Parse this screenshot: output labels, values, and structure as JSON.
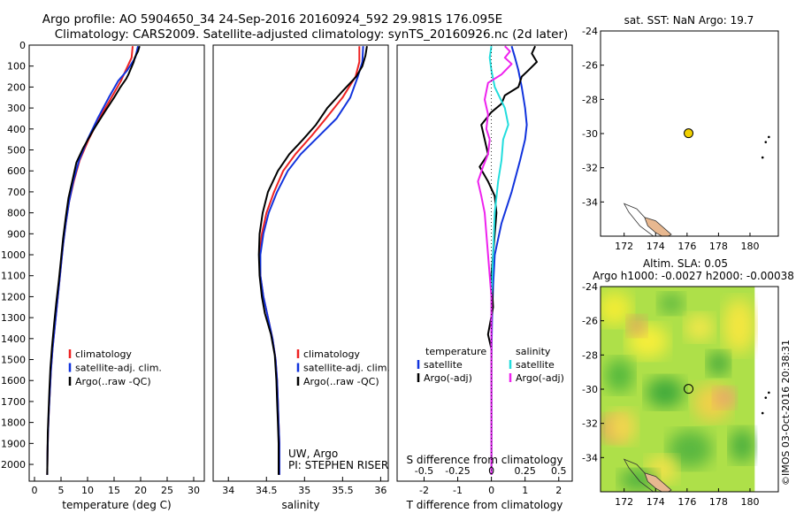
{
  "title_line1": "Argo profile: AO 5904650_34 24-Sep-2016 20160924_592 29.981S 176.095E",
  "title_line2": "Climatology: CARS2009. Satellite-adjusted climatology: synTS_20160926.nc (2d later)",
  "chart_data": [
    {
      "type": "line",
      "name": "temperature-profile",
      "xlabel": "temperature (deg C)",
      "ylabel": "",
      "xlim": [
        -1,
        32
      ],
      "ylim": [
        0,
        2080
      ],
      "y_inverted": true,
      "xticks": [
        0,
        5,
        10,
        15,
        20,
        25,
        30
      ],
      "yticks": [
        0,
        100,
        200,
        300,
        400,
        500,
        600,
        700,
        800,
        900,
        1000,
        1100,
        1200,
        1300,
        1400,
        1500,
        1600,
        1700,
        1800,
        1900,
        2000
      ],
      "legend": [
        "climatology",
        "satellite-adj. clim.",
        "Argo(..raw -QC)"
      ],
      "series": [
        {
          "name": "climatology",
          "color": "#ee2222",
          "points": [
            [
              18.5,
              5
            ],
            [
              18.3,
              60
            ],
            [
              17.2,
              120
            ],
            [
              16.3,
              170
            ],
            [
              14.5,
              250
            ],
            [
              12.2,
              350
            ],
            [
              10.2,
              450
            ],
            [
              8.5,
              550
            ],
            [
              7.4,
              650
            ],
            [
              6.5,
              750
            ],
            [
              5.9,
              850
            ],
            [
              5.4,
              950
            ],
            [
              5.0,
              1050
            ],
            [
              4.6,
              1150
            ],
            [
              4.2,
              1250
            ],
            [
              3.8,
              1350
            ],
            [
              3.4,
              1450
            ],
            [
              3.1,
              1550
            ],
            [
              2.9,
              1650
            ],
            [
              2.7,
              1750
            ],
            [
              2.55,
              1850
            ],
            [
              2.45,
              1950
            ],
            [
              2.4,
              2050
            ]
          ]
        },
        {
          "name": "satellite-adj. clim.",
          "color": "#1133dd",
          "points": [
            [
              19.5,
              5
            ],
            [
              19.0,
              60
            ],
            [
              17.5,
              120
            ],
            [
              15.8,
              170
            ],
            [
              14.0,
              250
            ],
            [
              11.9,
              350
            ],
            [
              10.0,
              450
            ],
            [
              8.4,
              550
            ],
            [
              7.3,
              650
            ],
            [
              6.5,
              750
            ],
            [
              5.9,
              850
            ],
            [
              5.4,
              950
            ],
            [
              5.0,
              1050
            ],
            [
              4.6,
              1150
            ],
            [
              4.2,
              1250
            ],
            [
              3.8,
              1350
            ],
            [
              3.4,
              1450
            ],
            [
              3.1,
              1550
            ],
            [
              2.9,
              1650
            ],
            [
              2.7,
              1750
            ],
            [
              2.55,
              1850
            ],
            [
              2.45,
              1950
            ],
            [
              2.4,
              2050
            ]
          ]
        },
        {
          "name": "Argo(..raw -QC)",
          "color": "#000000",
          "points": [
            [
              19.8,
              5
            ],
            [
              19.5,
              30
            ],
            [
              18.9,
              60
            ],
            [
              18.7,
              80
            ],
            [
              18.2,
              110
            ],
            [
              17.7,
              140
            ],
            [
              17.3,
              160
            ],
            [
              16.2,
              200
            ],
            [
              15.0,
              250
            ],
            [
              13.2,
              320
            ],
            [
              11.2,
              400
            ],
            [
              9.2,
              490
            ],
            [
              7.9,
              560
            ],
            [
              7.2,
              640
            ],
            [
              6.4,
              730
            ],
            [
              5.9,
              820
            ],
            [
              5.4,
              920
            ],
            [
              5.0,
              1020
            ],
            [
              4.6,
              1120
            ],
            [
              4.1,
              1230
            ],
            [
              3.7,
              1330
            ],
            [
              3.3,
              1440
            ],
            [
              3.0,
              1540
            ],
            [
              2.8,
              1650
            ],
            [
              2.65,
              1750
            ],
            [
              2.5,
              1850
            ],
            [
              2.45,
              1950
            ],
            [
              2.4,
              2050
            ]
          ]
        }
      ]
    },
    {
      "type": "line",
      "name": "salinity-profile",
      "xlabel": "salinity",
      "xlim": [
        33.8,
        36.1
      ],
      "ylim": [
        0,
        2080
      ],
      "y_inverted": true,
      "xticks": [
        34,
        34.5,
        35,
        35.5,
        36
      ],
      "xtick_labels": [
        "34",
        "34.5",
        "35",
        "35.5",
        "36"
      ],
      "legend": [
        "climatology",
        "satellite-adj. clim.",
        "Argo(..raw -QC)"
      ],
      "annotation": [
        "UW, Argo",
        "PI: STEPHEN RISER"
      ],
      "series": [
        {
          "name": "climatology",
          "color": "#ee2222",
          "points": [
            [
              35.72,
              5
            ],
            [
              35.72,
              80
            ],
            [
              35.67,
              150
            ],
            [
              35.5,
              250
            ],
            [
              35.28,
              350
            ],
            [
              35.1,
              430
            ],
            [
              34.88,
              520
            ],
            [
              34.72,
              600
            ],
            [
              34.6,
              700
            ],
            [
              34.5,
              800
            ],
            [
              34.44,
              900
            ],
            [
              34.41,
              1000
            ],
            [
              34.42,
              1100
            ],
            [
              34.46,
              1200
            ],
            [
              34.52,
              1300
            ],
            [
              34.58,
              1400
            ],
            [
              34.62,
              1500
            ],
            [
              34.64,
              1600
            ],
            [
              34.65,
              1700
            ],
            [
              34.66,
              1800
            ],
            [
              34.67,
              1900
            ],
            [
              34.67,
              2050
            ]
          ]
        },
        {
          "name": "satellite-adj. clim.",
          "color": "#1133dd",
          "points": [
            [
              35.77,
              5
            ],
            [
              35.76,
              80
            ],
            [
              35.7,
              150
            ],
            [
              35.6,
              250
            ],
            [
              35.42,
              350
            ],
            [
              35.2,
              430
            ],
            [
              34.95,
              520
            ],
            [
              34.78,
              600
            ],
            [
              34.64,
              700
            ],
            [
              34.53,
              800
            ],
            [
              34.46,
              900
            ],
            [
              34.42,
              1000
            ],
            [
              34.42,
              1100
            ],
            [
              34.46,
              1200
            ],
            [
              34.52,
              1300
            ],
            [
              34.58,
              1400
            ],
            [
              34.62,
              1500
            ],
            [
              34.64,
              1600
            ],
            [
              34.65,
              1700
            ],
            [
              34.66,
              1800
            ],
            [
              34.67,
              1900
            ],
            [
              34.67,
              2050
            ]
          ]
        },
        {
          "name": "Argo(..raw -QC)",
          "color": "#000000",
          "points": [
            [
              35.82,
              5
            ],
            [
              35.8,
              50
            ],
            [
              35.76,
              100
            ],
            [
              35.68,
              150
            ],
            [
              35.5,
              220
            ],
            [
              35.3,
              300
            ],
            [
              35.15,
              380
            ],
            [
              34.98,
              450
            ],
            [
              34.8,
              520
            ],
            [
              34.65,
              600
            ],
            [
              34.52,
              700
            ],
            [
              34.45,
              800
            ],
            [
              34.41,
              900
            ],
            [
              34.4,
              1000
            ],
            [
              34.41,
              1100
            ],
            [
              34.44,
              1200
            ],
            [
              34.48,
              1280
            ],
            [
              34.56,
              1380
            ],
            [
              34.61,
              1480
            ],
            [
              34.63,
              1600
            ],
            [
              34.64,
              1700
            ],
            [
              34.65,
              1800
            ],
            [
              34.66,
              1900
            ],
            [
              34.66,
              2050
            ]
          ]
        }
      ]
    },
    {
      "type": "line",
      "name": "difference-from-climatology",
      "xlabel": "T difference from climatology",
      "top_label": "S difference from climatology",
      "xlim": [
        -2.8,
        2.4
      ],
      "ylim": [
        0,
        2080
      ],
      "y_inverted": true,
      "xticks": [
        -2,
        -1,
        0,
        1,
        2
      ],
      "top_tick_labels": [
        "-0.5",
        "-0.25",
        "0",
        "0.25",
        "0.5"
      ],
      "legend_titles": [
        "temperature",
        "salinity"
      ],
      "legend": [
        "satellite",
        "Argo(-adj)",
        "satellite",
        "Argo(-adj)"
      ],
      "series": [
        {
          "name": "temperature satellite",
          "color": "#1133dd",
          "points": [
            [
              0.6,
              5
            ],
            [
              0.7,
              60
            ],
            [
              0.8,
              120
            ],
            [
              0.9,
              200
            ],
            [
              1.0,
              300
            ],
            [
              1.05,
              380
            ],
            [
              1.0,
              450
            ],
            [
              0.85,
              550
            ],
            [
              0.6,
              700
            ],
            [
              0.3,
              850
            ],
            [
              0.1,
              1000
            ],
            [
              0.05,
              1150
            ],
            [
              0.02,
              1300
            ],
            [
              0.0,
              1500
            ],
            [
              0.0,
              2050
            ]
          ]
        },
        {
          "name": "temperature Argo(-adj)",
          "color": "#000000",
          "points": [
            [
              1.3,
              5
            ],
            [
              1.2,
              40
            ],
            [
              1.35,
              80
            ],
            [
              1.1,
              120
            ],
            [
              0.9,
              150
            ],
            [
              0.8,
              200
            ],
            [
              0.4,
              240
            ],
            [
              0.3,
              280
            ],
            [
              0.0,
              320
            ],
            [
              -0.3,
              380
            ],
            [
              -0.2,
              450
            ],
            [
              -0.1,
              520
            ],
            [
              -0.35,
              580
            ],
            [
              -0.1,
              650
            ],
            [
              0.1,
              720
            ],
            [
              0.15,
              800
            ],
            [
              0.1,
              900
            ],
            [
              0.05,
              1000
            ],
            [
              0.0,
              1100
            ],
            [
              0.05,
              1250
            ],
            [
              -0.1,
              1380
            ],
            [
              0.0,
              1450
            ],
            [
              0.0,
              2050
            ]
          ]
        },
        {
          "name": "salinity satellite",
          "color": "#22dddd",
          "points": [
            [
              0.0,
              5
            ],
            [
              -0.05,
              60
            ],
            [
              0.0,
              120
            ],
            [
              0.1,
              200
            ],
            [
              0.4,
              300
            ],
            [
              0.5,
              380
            ],
            [
              0.35,
              450
            ],
            [
              0.3,
              550
            ],
            [
              0.2,
              650
            ],
            [
              0.1,
              800
            ],
            [
              0.05,
              1000
            ],
            [
              0.0,
              1200
            ],
            [
              0.0,
              2050
            ]
          ]
        },
        {
          "name": "salinity Argo(-adj)",
          "color": "#ee22ee",
          "points": [
            [
              0.4,
              5
            ],
            [
              0.55,
              30
            ],
            [
              0.4,
              60
            ],
            [
              0.6,
              90
            ],
            [
              0.3,
              140
            ],
            [
              -0.1,
              180
            ],
            [
              -0.2,
              260
            ],
            [
              -0.1,
              330
            ],
            [
              -0.15,
              400
            ],
            [
              -0.05,
              450
            ],
            [
              -0.1,
              520
            ],
            [
              -0.25,
              580
            ],
            [
              -0.4,
              650
            ],
            [
              -0.3,
              720
            ],
            [
              -0.2,
              800
            ],
            [
              -0.15,
              900
            ],
            [
              -0.1,
              1000
            ],
            [
              -0.05,
              1100
            ],
            [
              0.0,
              1200
            ],
            [
              0.0,
              1350
            ],
            [
              0.0,
              1450
            ],
            [
              0.0,
              2050
            ]
          ]
        }
      ]
    },
    {
      "type": "scatter",
      "name": "sst-map",
      "title": "sat. SST: NaN Argo: 19.7",
      "xlim": [
        170.5,
        181.8
      ],
      "ylim": [
        -36,
        -24
      ],
      "xticks": [
        172,
        174,
        176,
        178,
        180
      ],
      "yticks": [
        -24,
        -26,
        -28,
        -30,
        -32,
        -34
      ],
      "argo_position": [
        176.095,
        -29.981
      ],
      "marker_color": "#f0d000"
    },
    {
      "type": "heatmap",
      "name": "sla-map",
      "title_line1": "Altim. SLA: 0.05",
      "title_line2": "Argo h1000: -0.0027 h2000: -0.00038",
      "xlim": [
        170.5,
        181.8
      ],
      "ylim": [
        -36,
        -24
      ],
      "data_xlim": [
        170.5,
        180.3
      ],
      "xticks": [
        172,
        174,
        176,
        178,
        180
      ],
      "yticks": [
        -24,
        -26,
        -28,
        -30,
        -32,
        -34
      ],
      "argo_position": [
        176.095,
        -29.981
      ]
    }
  ],
  "side_label": "©IMOS 03-Oct-2016 20:38:31"
}
